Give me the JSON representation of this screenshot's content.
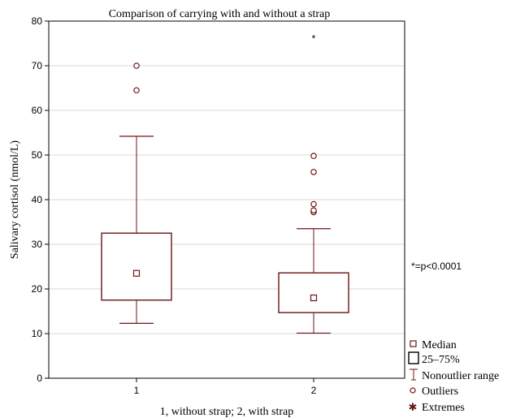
{
  "colors": {
    "box": "#6e1414",
    "grid": "#d9d9d9",
    "axis": "#000000",
    "background": "#ffffff"
  },
  "chart_data": {
    "type": "box",
    "title": "Comparison of carrying with and without a strap",
    "xlabel": "1, without strap; 2, with strap",
    "ylabel": "Salivary cortisol (nmol/L)",
    "ylim": [
      0,
      80
    ],
    "yticks": [
      0,
      10,
      20,
      30,
      40,
      50,
      60,
      70,
      80
    ],
    "grid": true,
    "annotation": "*=p<0.0001",
    "groups": [
      {
        "label": "1",
        "median": 23.5,
        "q1": 17.5,
        "q3": 32.5,
        "whisker_low": 12.3,
        "whisker_high": 54.2,
        "outliers": [
          64.5,
          70.0
        ],
        "extremes": []
      },
      {
        "label": "2",
        "median": 18.0,
        "q1": 14.7,
        "q3": 23.6,
        "whisker_low": 10.1,
        "whisker_high": 33.5,
        "outliers": [
          37.2,
          37.6,
          39.0,
          46.2,
          49.8
        ],
        "extremes": [
          76.5
        ]
      }
    ],
    "extreme_marker_label": "*",
    "legend": {
      "placement": "bottom-right",
      "items": [
        {
          "symbol": "median",
          "label": "Median"
        },
        {
          "symbol": "box",
          "label": "25–75%"
        },
        {
          "symbol": "range",
          "label": "Nonoutlier range"
        },
        {
          "symbol": "outlier",
          "label": "Outliers"
        },
        {
          "symbol": "extreme",
          "label": "Extremes"
        }
      ]
    }
  }
}
